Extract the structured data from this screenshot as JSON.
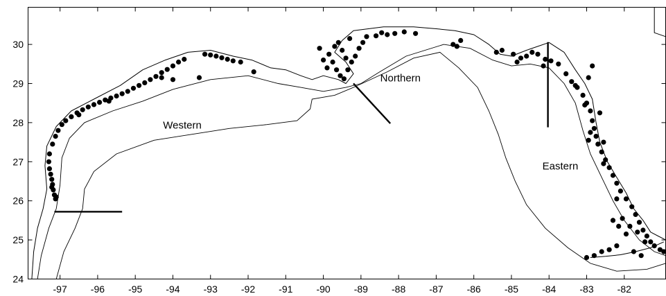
{
  "map": {
    "x_ticks": [
      -97,
      -96,
      -95,
      -94,
      -93,
      -92,
      -91,
      -90,
      -89,
      -88,
      -87,
      -86,
      -85,
      -84,
      -83,
      -82
    ],
    "y_ticks": [
      24,
      25,
      26,
      27,
      28,
      29,
      30
    ],
    "x_range": [
      -97.85,
      -80.9
    ],
    "y_range": [
      24,
      30.95
    ],
    "regions": [
      {
        "name": "Western",
        "lon": -93.75,
        "lat": 27.85
      },
      {
        "name": "Northern",
        "lon": -87.95,
        "lat": 29.05
      },
      {
        "name": "Eastern",
        "lon": -83.7,
        "lat": 26.8
      }
    ],
    "dividers": [
      {
        "from": [
          -97.15,
          25.72
        ],
        "to": [
          -95.35,
          25.72
        ]
      },
      {
        "from": [
          -89.2,
          29.0
        ],
        "to": [
          -88.22,
          27.98
        ]
      },
      {
        "from": [
          -84.03,
          30.06
        ],
        "to": [
          -84.03,
          27.88
        ]
      }
    ],
    "points": [
      [
        -97.12,
        26.05
      ],
      [
        -97.15,
        26.15
      ],
      [
        -97.18,
        26.28
      ],
      [
        -97.2,
        26.42
      ],
      [
        -97.22,
        26.55
      ],
      [
        -97.25,
        26.68
      ],
      [
        -97.28,
        26.82
      ],
      [
        -97.22,
        26.35
      ],
      [
        -97.1,
        26.1
      ],
      [
        -97.3,
        27.0
      ],
      [
        -97.28,
        27.2
      ],
      [
        -97.2,
        27.45
      ],
      [
        -97.12,
        27.65
      ],
      [
        -97.05,
        27.8
      ],
      [
        -96.95,
        27.95
      ],
      [
        -96.85,
        28.05
      ],
      [
        -96.7,
        28.15
      ],
      [
        -96.55,
        28.25
      ],
      [
        -96.4,
        28.33
      ],
      [
        -96.25,
        28.4
      ],
      [
        -96.1,
        28.46
      ],
      [
        -95.95,
        28.52
      ],
      [
        -95.8,
        28.58
      ],
      [
        -95.65,
        28.63
      ],
      [
        -95.5,
        28.68
      ],
      [
        -95.35,
        28.74
      ],
      [
        -95.2,
        28.8
      ],
      [
        -95.05,
        28.88
      ],
      [
        -94.9,
        28.95
      ],
      [
        -94.75,
        29.02
      ],
      [
        -94.6,
        29.1
      ],
      [
        -94.45,
        29.18
      ],
      [
        -94.3,
        29.28
      ],
      [
        -94.15,
        29.36
      ],
      [
        -94.0,
        29.45
      ],
      [
        -93.85,
        29.55
      ],
      [
        -93.7,
        29.62
      ],
      [
        -93.15,
        29.75
      ],
      [
        -93.0,
        29.73
      ],
      [
        -92.85,
        29.7
      ],
      [
        -92.7,
        29.66
      ],
      [
        -92.55,
        29.62
      ],
      [
        -92.4,
        29.58
      ],
      [
        -93.3,
        29.15
      ],
      [
        -94.3,
        29.15
      ],
      [
        -95.7,
        28.55
      ],
      [
        -96.5,
        28.2
      ],
      [
        -94.0,
        29.1
      ],
      [
        -92.2,
        29.55
      ],
      [
        -91.85,
        29.3
      ],
      [
        -89.85,
        29.75
      ],
      [
        -89.75,
        29.55
      ],
      [
        -89.65,
        29.35
      ],
      [
        -89.55,
        29.2
      ],
      [
        -89.45,
        29.12
      ],
      [
        -89.35,
        29.35
      ],
      [
        -89.25,
        29.55
      ],
      [
        -89.15,
        29.7
      ],
      [
        -89.05,
        29.9
      ],
      [
        -88.95,
        30.05
      ],
      [
        -89.6,
        30.05
      ],
      [
        -89.5,
        29.85
      ],
      [
        -89.4,
        29.65
      ],
      [
        -89.3,
        30.15
      ],
      [
        -88.85,
        30.2
      ],
      [
        -88.6,
        30.22
      ],
      [
        -88.3,
        30.25
      ],
      [
        -88.1,
        30.28
      ],
      [
        -87.85,
        30.32
      ],
      [
        -89.7,
        29.95
      ],
      [
        -86.35,
        30.1
      ],
      [
        -86.45,
        29.95
      ],
      [
        -84.95,
        29.75
      ],
      [
        -84.75,
        29.65
      ],
      [
        -84.6,
        29.7
      ],
      [
        -84.45,
        29.8
      ],
      [
        -84.3,
        29.75
      ],
      [
        -84.1,
        29.62
      ],
      [
        -83.95,
        29.58
      ],
      [
        -83.75,
        29.5
      ],
      [
        -83.55,
        29.25
      ],
      [
        -83.4,
        29.05
      ],
      [
        -83.25,
        28.9
      ],
      [
        -83.1,
        28.7
      ],
      [
        -83.0,
        28.5
      ],
      [
        -82.9,
        28.3
      ],
      [
        -82.85,
        28.05
      ],
      [
        -82.8,
        27.85
      ],
      [
        -82.75,
        27.65
      ],
      [
        -82.7,
        27.45
      ],
      [
        -82.6,
        27.25
      ],
      [
        -82.5,
        27.05
      ],
      [
        -82.4,
        26.85
      ],
      [
        -82.3,
        26.65
      ],
      [
        -82.2,
        26.45
      ],
      [
        -82.1,
        26.25
      ],
      [
        -81.95,
        26.05
      ],
      [
        -81.8,
        25.85
      ],
      [
        -81.7,
        25.65
      ],
      [
        -81.6,
        25.45
      ],
      [
        -81.5,
        25.25
      ],
      [
        -81.4,
        25.1
      ],
      [
        -81.3,
        24.95
      ],
      [
        -81.2,
        24.85
      ],
      [
        -81.05,
        24.75
      ],
      [
        -80.95,
        24.7
      ],
      [
        -82.9,
        27.75
      ],
      [
        -82.95,
        27.55
      ],
      [
        -82.55,
        26.95
      ],
      [
        -82.2,
        26.05
      ],
      [
        -82.05,
        25.55
      ],
      [
        -81.85,
        25.35
      ],
      [
        -81.65,
        25.2
      ],
      [
        -81.45,
        24.95
      ],
      [
        -82.3,
        25.5
      ],
      [
        -82.15,
        25.35
      ],
      [
        -81.95,
        25.15
      ],
      [
        -82.6,
        24.7
      ],
      [
        -82.8,
        24.6
      ],
      [
        -83.0,
        24.55
      ],
      [
        -82.4,
        24.75
      ],
      [
        -82.2,
        24.85
      ],
      [
        -81.75,
        24.7
      ],
      [
        -81.55,
        24.6
      ],
      [
        -82.85,
        29.45
      ],
      [
        -82.95,
        29.15
      ],
      [
        -83.3,
        28.95
      ],
      [
        -83.05,
        28.45
      ],
      [
        -82.65,
        28.25
      ],
      [
        -82.55,
        27.5
      ],
      [
        -85.4,
        29.8
      ],
      [
        -85.25,
        29.85
      ],
      [
        -84.85,
        29.55
      ],
      [
        -86.55,
        30.0
      ],
      [
        -87.55,
        30.28
      ],
      [
        -90.1,
        29.9
      ],
      [
        -90.0,
        29.6
      ],
      [
        -89.9,
        29.4
      ],
      [
        -88.45,
        30.3
      ],
      [
        -84.15,
        29.45
      ]
    ]
  }
}
